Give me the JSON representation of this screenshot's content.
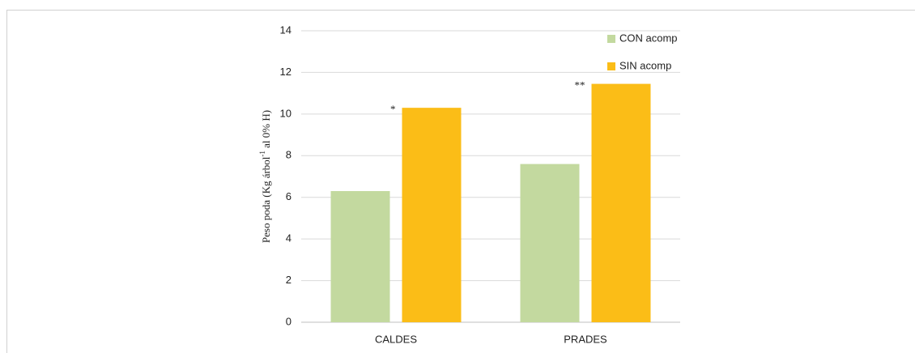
{
  "chart_data": {
    "type": "bar",
    "ylabel": {
      "text": "Peso poda (Kg árbol",
      "superscript": "-1",
      "rest": " al 0% H)"
    },
    "categories": [
      "CALDES",
      "PRADES"
    ],
    "series": [
      {
        "name": "CON acomp",
        "color": "#c3d99f",
        "values": [
          6.3,
          7.6
        ]
      },
      {
        "name": "SIN acomp",
        "color": "#fbbd17",
        "values": [
          10.3,
          11.45
        ]
      }
    ],
    "annotations": [
      {
        "text": "*",
        "category": 0,
        "series": 1
      },
      {
        "text": "**",
        "category": 1,
        "series": 1
      }
    ],
    "ylim": [
      0,
      14
    ],
    "yticks": [
      0,
      2,
      4,
      6,
      8,
      10,
      12,
      14
    ],
    "grid": true,
    "legend": "top-right"
  }
}
